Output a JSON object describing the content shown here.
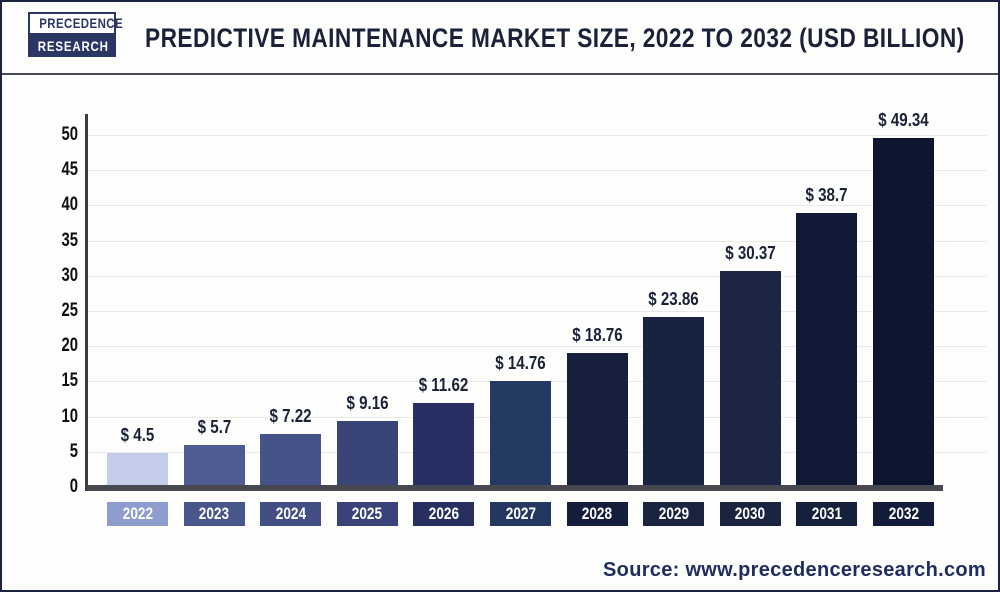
{
  "header": {
    "logo_line1": "PRECEDENCE",
    "logo_line2": "RESEARCH",
    "title": "PREDICTIVE MAINTENANCE MARKET SIZE, 2022 TO 2032 (USD BILLION)"
  },
  "chart_data": {
    "type": "bar",
    "title": "Predictive Maintenance Market Size, 2022 to 2032 (USD Billion)",
    "unit": "USD Billion",
    "categories": [
      "2022",
      "2023",
      "2024",
      "2025",
      "2026",
      "2027",
      "2028",
      "2029",
      "2030",
      "2031",
      "2032"
    ],
    "values": [
      4.5,
      5.7,
      7.22,
      9.16,
      11.62,
      14.76,
      18.76,
      23.86,
      30.37,
      38.7,
      49.34
    ],
    "value_labels": [
      "$ 4.5",
      "$ 5.7",
      "$ 7.22",
      "$ 9.16",
      "$ 11.62",
      "$ 14.76",
      "$ 18.76",
      "$ 23.86",
      "$ 30.37",
      "$ 38.7",
      "$ 49.34"
    ],
    "ylim": [
      0,
      50
    ],
    "yticks": [
      0,
      5,
      10,
      15,
      20,
      25,
      30,
      35,
      40,
      45,
      50
    ],
    "grid": true,
    "legend": false,
    "bar_colors": [
      "#c3cde9",
      "#4e5c92",
      "#46538b",
      "#3a4577",
      "#282f62",
      "#253a63",
      "#161f3e",
      "#182241",
      "#1c2543",
      "#101a37",
      "#0d1530"
    ],
    "category_box_colors": [
      "#8e9cce",
      "#49568b",
      "#424e84",
      "#39437a",
      "#272e60",
      "#243760",
      "#141d3c",
      "#1a2440",
      "#1a2441",
      "#15203c",
      "#131c3a"
    ]
  },
  "source": {
    "label": "Source: www.precedenceresearch.com"
  },
  "colors": {
    "title_text": "#1b2138",
    "axis_x": "#46474f",
    "axis_y": "#3b3b41",
    "gridline": "#e9e9e9",
    "frame_border": "#1b2342",
    "source_text": "#1e2c5e",
    "logo_navy": "#2a3764"
  }
}
